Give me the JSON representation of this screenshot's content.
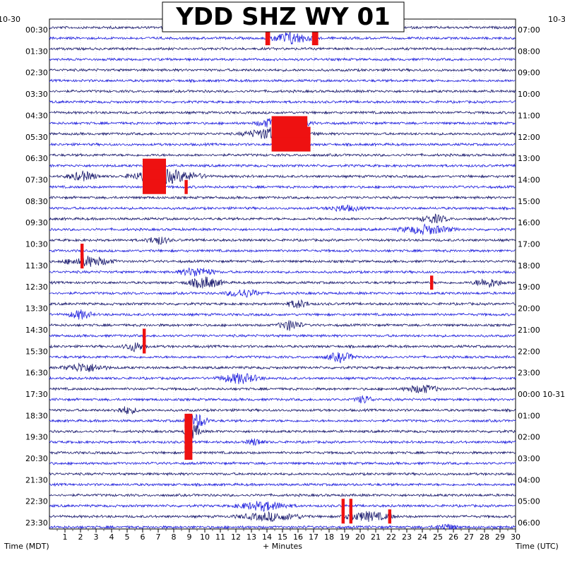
{
  "chart_data": {
    "type": "line",
    "title": "YDD SHZ WY 01",
    "xlabel": "+ Minutes",
    "left_axis_title": "Time (MDT)",
    "right_axis_title": "Time (UTC)",
    "left_date": "10-30",
    "right_date": "10-3",
    "x_ticks": [
      "1",
      "2",
      "3",
      "4",
      "5",
      "6",
      "7",
      "8",
      "9",
      "10",
      "11",
      "12",
      "13",
      "14",
      "15",
      "16",
      "17",
      "18",
      "19",
      "20",
      "21",
      "22",
      "23",
      "24",
      "25",
      "26",
      "27",
      "28",
      "29",
      "30"
    ],
    "xlim": [
      0,
      30
    ],
    "left_times": [
      "00:30",
      "01:30",
      "02:30",
      "03:30",
      "04:30",
      "05:30",
      "06:30",
      "07:30",
      "08:30",
      "09:30",
      "10:30",
      "11:30",
      "12:30",
      "13:30",
      "14:30",
      "15:30",
      "16:30",
      "17:30",
      "18:30",
      "19:30",
      "20:30",
      "21:30",
      "22:30",
      "23:30"
    ],
    "right_times": [
      "07:00",
      "08:00",
      "09:00",
      "10:00",
      "11:00",
      "12:00",
      "13:00",
      "14:00",
      "15:00",
      "16:00",
      "17:00",
      "18:00",
      "19:00",
      "20:00",
      "21:00",
      "22:00",
      "23:00",
      "00:00 10-31",
      "01:00",
      "02:00",
      "03:00",
      "04:00",
      "05:00",
      "06:00"
    ],
    "trace_rows": 48,
    "trace_colors": [
      "#1a1a6e",
      "#2020dd"
    ],
    "clip_color": "#ee1111",
    "grid": true,
    "events": [
      {
        "row": 1,
        "start": 13.8,
        "end": 17.2,
        "amp": 2.2
      },
      {
        "row": 9,
        "start": 13.0,
        "end": 17.2,
        "amp": 2.6
      },
      {
        "row": 10,
        "start": 12.0,
        "end": 17.5,
        "amp": 2.4
      },
      {
        "row": 14,
        "start": 0.8,
        "end": 3.5,
        "amp": 1.6
      },
      {
        "row": 14,
        "start": 4.5,
        "end": 10.5,
        "amp": 2.4
      },
      {
        "row": 17,
        "start": 17.5,
        "end": 20.5,
        "amp": 1.0
      },
      {
        "row": 18,
        "start": 23.5,
        "end": 26.0,
        "amp": 1.4
      },
      {
        "row": 19,
        "start": 22.0,
        "end": 26.5,
        "amp": 1.6
      },
      {
        "row": 20,
        "start": 6.0,
        "end": 8.0,
        "amp": 1.4
      },
      {
        "row": 22,
        "start": 0.5,
        "end": 4.5,
        "amp": 1.8
      },
      {
        "row": 23,
        "start": 8.0,
        "end": 11.0,
        "amp": 1.6
      },
      {
        "row": 24,
        "start": 8.5,
        "end": 11.5,
        "amp": 2.0
      },
      {
        "row": 24,
        "start": 27.0,
        "end": 29.5,
        "amp": 1.6
      },
      {
        "row": 25,
        "start": 11.0,
        "end": 14.0,
        "amp": 1.4
      },
      {
        "row": 26,
        "start": 15.0,
        "end": 17.0,
        "amp": 1.4
      },
      {
        "row": 27,
        "start": 1.0,
        "end": 3.0,
        "amp": 1.6
      },
      {
        "row": 28,
        "start": 14.5,
        "end": 16.5,
        "amp": 1.8
      },
      {
        "row": 30,
        "start": 4.5,
        "end": 6.5,
        "amp": 1.6
      },
      {
        "row": 31,
        "start": 17.5,
        "end": 20.0,
        "amp": 1.6
      },
      {
        "row": 32,
        "start": 0.5,
        "end": 4.0,
        "amp": 1.6
      },
      {
        "row": 33,
        "start": 10.5,
        "end": 14.0,
        "amp": 1.8
      },
      {
        "row": 34,
        "start": 22.5,
        "end": 25.5,
        "amp": 1.4
      },
      {
        "row": 35,
        "start": 19.5,
        "end": 21.0,
        "amp": 1.4
      },
      {
        "row": 36,
        "start": 4.0,
        "end": 6.0,
        "amp": 1.2
      },
      {
        "row": 37,
        "start": 8.5,
        "end": 10.5,
        "amp": 2.6
      },
      {
        "row": 38,
        "start": 8.5,
        "end": 10.0,
        "amp": 2.4
      },
      {
        "row": 39,
        "start": 12.5,
        "end": 14.0,
        "amp": 1.2
      },
      {
        "row": 45,
        "start": 11.5,
        "end": 16.0,
        "amp": 1.6
      },
      {
        "row": 46,
        "start": 11.5,
        "end": 17.0,
        "amp": 1.4
      },
      {
        "row": 46,
        "start": 18.5,
        "end": 22.5,
        "amp": 1.6
      },
      {
        "row": 47,
        "start": 24.5,
        "end": 26.5,
        "amp": 1.0
      }
    ],
    "clips": [
      {
        "row": 1,
        "start": 13.9,
        "end": 14.2
      },
      {
        "row": 1,
        "start": 16.9,
        "end": 17.3
      },
      {
        "row": 9,
        "start": 14.3,
        "end": 16.6
      },
      {
        "row": 10,
        "start": 14.3,
        "end": 16.8
      },
      {
        "row": 11,
        "start": 14.3,
        "end": 16.8
      },
      {
        "row": 13,
        "start": 6.0,
        "end": 7.5
      },
      {
        "row": 14,
        "start": 6.0,
        "end": 7.5
      },
      {
        "row": 15,
        "start": 6.0,
        "end": 7.5
      },
      {
        "row": 15,
        "start": 8.7,
        "end": 8.9
      },
      {
        "row": 21,
        "start": 2.0,
        "end": 2.2
      },
      {
        "row": 22,
        "start": 2.0,
        "end": 2.2
      },
      {
        "row": 24,
        "start": 24.5,
        "end": 24.7
      },
      {
        "row": 29,
        "start": 6.0,
        "end": 6.2
      },
      {
        "row": 30,
        "start": 6.0,
        "end": 6.2
      },
      {
        "row": 37,
        "start": 8.7,
        "end": 9.2
      },
      {
        "row": 38,
        "start": 8.7,
        "end": 9.2
      },
      {
        "row": 39,
        "start": 8.7,
        "end": 9.2
      },
      {
        "row": 40,
        "start": 8.7,
        "end": 9.2
      },
      {
        "row": 45,
        "start": 18.8,
        "end": 19.0
      },
      {
        "row": 45,
        "start": 19.3,
        "end": 19.5
      },
      {
        "row": 46,
        "start": 18.8,
        "end": 19.0
      },
      {
        "row": 46,
        "start": 19.3,
        "end": 19.5
      },
      {
        "row": 46,
        "start": 21.8,
        "end": 22.0
      }
    ]
  }
}
